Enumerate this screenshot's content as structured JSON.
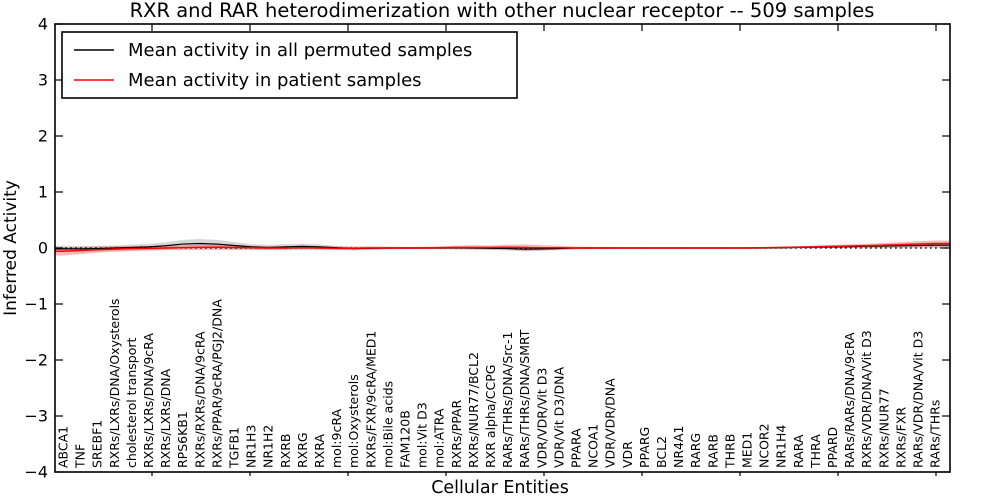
{
  "title": "RXR and RAR heterodimerization with other nuclear receptor -- 509 samples",
  "axes": {
    "x_label": "Cellular Entities",
    "y_label": "Inferred Activity",
    "y_tick_labels": [
      "4",
      "3",
      "2",
      "1",
      "0",
      "−1",
      "−2",
      "−3",
      "−4"
    ]
  },
  "legend": {
    "items": [
      {
        "label": "Mean activity in all permuted samples",
        "color": "#000000"
      },
      {
        "label": "Mean activity in patient samples",
        "color": "#ff0000"
      }
    ]
  },
  "colors": {
    "permuted_line": "#000000",
    "permuted_band": "rgba(0,0,0,0.16)",
    "patient_line": "#ff0000",
    "patient_band": "rgba(255,0,0,0.28)",
    "frame": "#000000"
  },
  "chart_data": {
    "type": "line",
    "title": "RXR and RAR heterodimerization with other nuclear receptor -- 509 samples",
    "xlabel": "Cellular Entities",
    "ylabel": "Inferred Activity",
    "ylim": [
      -4,
      4
    ],
    "y_ticks": [
      4,
      3,
      2,
      1,
      0,
      -1,
      -2,
      -3,
      -4
    ],
    "grid": false,
    "zero_line": "dotted",
    "legend_position": "upper left",
    "categories": [
      "ABCA1",
      "TNF",
      "SREBF1",
      "RXRs/LXRs/DNA/Oxysterols",
      "cholesterol transport",
      "RXRs/LXRs/DNA/9cRA",
      "RXRs/LXRs/DNA",
      "RPS6KB1",
      "RXRs/RXRs/DNA/9cRA",
      "RXRs/PPAR/9cRA/PGJ2/DNA",
      "TGFB1",
      "NR1H3",
      "NR1H2",
      "RXRB",
      "RXRG",
      "RXRA",
      "mol:9cRA",
      "mol:Oxysterols",
      "RXRs/FXR/9cRA/MED1",
      "mol:Bile acids",
      "FAM120B",
      "mol:Vit D3",
      "mol:ATRA",
      "RXRs/PPAR",
      "RXRs/NUR77/BCL2",
      "RXR alpha/CCPG",
      "RARs/THRs/DNA/Src-1",
      "RARs/THRs/DNA/SMRT",
      "VDR/VDR/Vit D3",
      "VDR/Vit D3/DNA",
      "PPARA",
      "NCOA1",
      "VDR/VDR/DNA",
      "VDR",
      "PPARG",
      "BCL2",
      "NR4A1",
      "RARG",
      "RARB",
      "THRB",
      "MED1",
      "NCOR2",
      "NR1H4",
      "RARA",
      "THRA",
      "PPARD",
      "RARs/RARs/DNA/9cRA",
      "RXRs/VDR/DNA/Vit D3",
      "RXRs/NUR77",
      "RXRs/FXR",
      "RARs/VDR/DNA/Vit D3",
      "RARs/THRs"
    ],
    "series": [
      {
        "name": "Mean activity in all permuted samples",
        "color": "#000000",
        "band_color": "rgba(0,0,0,0.16)",
        "values": [
          -0.015,
          -0.015,
          -0.01,
          0,
          0.01,
          0.02,
          0.04,
          0.07,
          0.08,
          0.07,
          0.045,
          0.02,
          0.01,
          0.02,
          0.03,
          0.02,
          0.005,
          -0.01,
          -0.005,
          0,
          0,
          0,
          0,
          0.005,
          0,
          -0.005,
          -0.01,
          -0.02,
          -0.015,
          -0.01,
          0,
          0,
          0,
          0,
          0,
          0,
          0,
          0,
          0,
          0,
          0,
          0,
          0.005,
          0.01,
          0.015,
          0.02,
          0.025,
          0.03,
          0.035,
          0.04,
          0.045,
          0.05
        ],
        "band_halfwidth": [
          0.055,
          0.05,
          0.05,
          0.045,
          0.05,
          0.055,
          0.065,
          0.075,
          0.08,
          0.075,
          0.065,
          0.05,
          0.045,
          0.05,
          0.05,
          0.045,
          0.035,
          0.035,
          0.03,
          0.025,
          0.02,
          0.02,
          0.02,
          0.025,
          0.025,
          0.03,
          0.035,
          0.04,
          0.035,
          0.03,
          0.02,
          0.02,
          0.015,
          0.015,
          0.015,
          0.015,
          0.015,
          0.015,
          0.015,
          0.015,
          0.015,
          0.015,
          0.015,
          0.02,
          0.02,
          0.02,
          0.025,
          0.03,
          0.035,
          0.04,
          0.045,
          0.05
        ]
      },
      {
        "name": "Mean activity in patient samples",
        "color": "#ff0000",
        "band_color": "rgba(255,0,0,0.28)",
        "values": [
          -0.06,
          -0.045,
          -0.03,
          -0.02,
          -0.01,
          -0.005,
          0,
          0.005,
          0.01,
          0.015,
          0.01,
          0.005,
          0,
          0,
          0.005,
          0,
          -0.005,
          -0.005,
          0,
          0,
          0,
          0,
          0.005,
          0.01,
          0.01,
          0.01,
          0.015,
          0.01,
          0.005,
          0.005,
          0,
          0,
          0,
          0,
          0,
          0,
          0,
          0,
          0,
          0,
          0,
          0.005,
          0.01,
          0.015,
          0.02,
          0.03,
          0.035,
          0.04,
          0.05,
          0.06,
          0.07,
          0.08
        ],
        "band_halfwidth": [
          0.075,
          0.065,
          0.055,
          0.05,
          0.045,
          0.04,
          0.04,
          0.04,
          0.045,
          0.05,
          0.045,
          0.035,
          0.03,
          0.03,
          0.035,
          0.03,
          0.03,
          0.03,
          0.025,
          0.02,
          0.02,
          0.02,
          0.025,
          0.035,
          0.04,
          0.035,
          0.045,
          0.055,
          0.045,
          0.035,
          0.025,
          0.02,
          0.02,
          0.015,
          0.015,
          0.015,
          0.015,
          0.015,
          0.015,
          0.015,
          0.015,
          0.015,
          0.02,
          0.02,
          0.025,
          0.025,
          0.03,
          0.035,
          0.04,
          0.045,
          0.05,
          0.055
        ]
      }
    ]
  }
}
